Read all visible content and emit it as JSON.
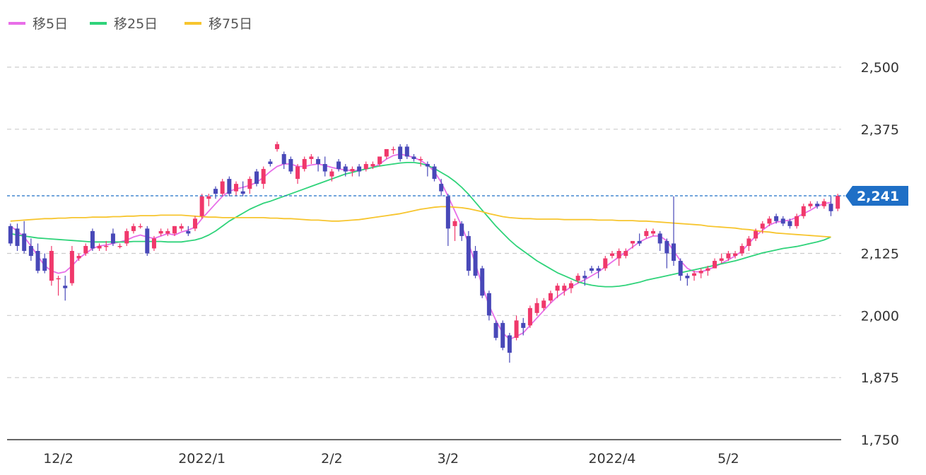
{
  "chart_data": {
    "type": "candlestick",
    "legend": {
      "placement": "top-left",
      "items": [
        {
          "label": "移5日",
          "color": "#e86ee8"
        },
        {
          "label": "移25日",
          "color": "#2fd37a"
        },
        {
          "label": "移75日",
          "color": "#f7c52e"
        }
      ]
    },
    "colors": {
      "up": "#f0386b",
      "down": "#4848b8",
      "axis": "#333333",
      "grid": "#cccccc",
      "last_price": "#1f6fc6"
    },
    "y_axis": {
      "min": 1750,
      "max": 2500,
      "position": "right",
      "ticks": [
        {
          "value": 2500,
          "label": "2,500"
        },
        {
          "value": 2375,
          "label": "2,375"
        },
        {
          "value": 2125,
          "label": "2,125"
        },
        {
          "value": 2000,
          "label": "2,000"
        },
        {
          "value": 1875,
          "label": "1,875"
        },
        {
          "value": 1750,
          "label": "1,750"
        }
      ]
    },
    "x_axis": {
      "ticks": [
        {
          "index": 7,
          "label": "12/2"
        },
        {
          "index": 28,
          "label": "2022/1"
        },
        {
          "index": 47,
          "label": "2/2"
        },
        {
          "index": 64,
          "label": "3/2"
        },
        {
          "index": 88,
          "label": "2022/4"
        },
        {
          "index": 105,
          "label": "5/2"
        }
      ]
    },
    "last_price": {
      "value": 2241,
      "label": "2,241"
    },
    "candles": [
      [
        2180,
        2185,
        2140,
        2145
      ],
      [
        2175,
        2185,
        2130,
        2140
      ],
      [
        2165,
        2190,
        2125,
        2130
      ],
      [
        2140,
        2155,
        2110,
        2120
      ],
      [
        2130,
        2145,
        2085,
        2090
      ],
      [
        2115,
        2125,
        2085,
        2090
      ],
      [
        2070,
        2140,
        2060,
        2130
      ],
      [
        2075,
        2080,
        2040,
        2075
      ],
      [
        2060,
        2080,
        2030,
        2055
      ],
      [
        2065,
        2140,
        2060,
        2130
      ],
      [
        2115,
        2125,
        2110,
        2120
      ],
      [
        2125,
        2145,
        2120,
        2140
      ],
      [
        2170,
        2175,
        2130,
        2135
      ],
      [
        2135,
        2145,
        2130,
        2140
      ],
      [
        2140,
        2150,
        2130,
        2140
      ],
      [
        2165,
        2175,
        2140,
        2145
      ],
      [
        2140,
        2145,
        2135,
        2140
      ],
      [
        2145,
        2175,
        2140,
        2170
      ],
      [
        2170,
        2185,
        2165,
        2180
      ],
      [
        2180,
        2185,
        2175,
        2180
      ],
      [
        2175,
        2180,
        2120,
        2125
      ],
      [
        2135,
        2160,
        2130,
        2155
      ],
      [
        2165,
        2175,
        2160,
        2170
      ],
      [
        2165,
        2175,
        2160,
        2170
      ],
      [
        2165,
        2180,
        2160,
        2180
      ],
      [
        2175,
        2185,
        2170,
        2180
      ],
      [
        2170,
        2180,
        2160,
        2165
      ],
      [
        2175,
        2200,
        2170,
        2195
      ],
      [
        2200,
        2245,
        2195,
        2240
      ],
      [
        2235,
        2245,
        2220,
        2240
      ],
      [
        2255,
        2260,
        2235,
        2245
      ],
      [
        2245,
        2275,
        2240,
        2270
      ],
      [
        2275,
        2280,
        2240,
        2245
      ],
      [
        2250,
        2270,
        2240,
        2265
      ],
      [
        2250,
        2270,
        2240,
        2245
      ],
      [
        2255,
        2280,
        2245,
        2275
      ],
      [
        2290,
        2295,
        2260,
        2265
      ],
      [
        2265,
        2300,
        2255,
        2295
      ],
      [
        2310,
        2315,
        2300,
        2305
      ],
      [
        2335,
        2350,
        2330,
        2345
      ],
      [
        2325,
        2330,
        2295,
        2305
      ],
      [
        2315,
        2320,
        2285,
        2290
      ],
      [
        2275,
        2305,
        2265,
        2300
      ],
      [
        2295,
        2320,
        2290,
        2315
      ],
      [
        2315,
        2325,
        2305,
        2320
      ],
      [
        2315,
        2320,
        2290,
        2305
      ],
      [
        2305,
        2320,
        2280,
        2290
      ],
      [
        2280,
        2295,
        2270,
        2290
      ],
      [
        2310,
        2315,
        2290,
        2295
      ],
      [
        2300,
        2305,
        2280,
        2290
      ],
      [
        2290,
        2300,
        2280,
        2295
      ],
      [
        2300,
        2305,
        2280,
        2290
      ],
      [
        2295,
        2310,
        2290,
        2305
      ],
      [
        2300,
        2310,
        2295,
        2305
      ],
      [
        2305,
        2320,
        2300,
        2320
      ],
      [
        2320,
        2335,
        2315,
        2335
      ],
      [
        2335,
        2340,
        2325,
        2335
      ],
      [
        2340,
        2345,
        2310,
        2315
      ],
      [
        2340,
        2345,
        2315,
        2320
      ],
      [
        2320,
        2325,
        2310,
        2315
      ],
      [
        2315,
        2320,
        2300,
        2315
      ],
      [
        2305,
        2310,
        2280,
        2300
      ],
      [
        2300,
        2305,
        2270,
        2275
      ],
      [
        2265,
        2275,
        2240,
        2250
      ],
      [
        2240,
        2245,
        2140,
        2175
      ],
      [
        2180,
        2195,
        2150,
        2190
      ],
      [
        2185,
        2190,
        2150,
        2160
      ],
      [
        2160,
        2170,
        2080,
        2090
      ],
      [
        2130,
        2140,
        2075,
        2080
      ],
      [
        2095,
        2100,
        2035,
        2040
      ],
      [
        2045,
        2050,
        1990,
        2000
      ],
      [
        1985,
        1990,
        1950,
        1955
      ],
      [
        1985,
        1990,
        1930,
        1935
      ],
      [
        1960,
        1965,
        1905,
        1925
      ],
      [
        1955,
        2000,
        1950,
        1990
      ],
      [
        1985,
        1995,
        1960,
        1975
      ],
      [
        1980,
        2020,
        1975,
        2015
      ],
      [
        2005,
        2035,
        2000,
        2025
      ],
      [
        2015,
        2035,
        2010,
        2030
      ],
      [
        2030,
        2050,
        2025,
        2045
      ],
      [
        2050,
        2065,
        2035,
        2060
      ],
      [
        2050,
        2065,
        2040,
        2060
      ],
      [
        2055,
        2070,
        2045,
        2065
      ],
      [
        2070,
        2085,
        2065,
        2080
      ],
      [
        2080,
        2090,
        2060,
        2075
      ],
      [
        2095,
        2100,
        2085,
        2090
      ],
      [
        2095,
        2100,
        2075,
        2090
      ],
      [
        2095,
        2120,
        2090,
        2115
      ],
      [
        2120,
        2130,
        2115,
        2125
      ],
      [
        2115,
        2135,
        2100,
        2130
      ],
      [
        2120,
        2135,
        2115,
        2130
      ],
      [
        2145,
        2150,
        2135,
        2150
      ],
      [
        2150,
        2165,
        2140,
        2145
      ],
      [
        2160,
        2175,
        2155,
        2170
      ],
      [
        2165,
        2175,
        2160,
        2170
      ],
      [
        2165,
        2170,
        2130,
        2145
      ],
      [
        2150,
        2155,
        2095,
        2125
      ],
      [
        2145,
        2240,
        2100,
        2110
      ],
      [
        2110,
        2115,
        2070,
        2080
      ],
      [
        2080,
        2085,
        2060,
        2075
      ],
      [
        2080,
        2090,
        2070,
        2085
      ],
      [
        2085,
        2095,
        2075,
        2090
      ],
      [
        2090,
        2100,
        2080,
        2095
      ],
      [
        2095,
        2115,
        2095,
        2110
      ],
      [
        2110,
        2125,
        2105,
        2115
      ],
      [
        2115,
        2130,
        2110,
        2125
      ],
      [
        2120,
        2130,
        2115,
        2125
      ],
      [
        2125,
        2145,
        2120,
        2140
      ],
      [
        2140,
        2160,
        2130,
        2155
      ],
      [
        2155,
        2175,
        2150,
        2170
      ],
      [
        2175,
        2190,
        2165,
        2185
      ],
      [
        2185,
        2200,
        2180,
        2195
      ],
      [
        2200,
        2205,
        2185,
        2190
      ],
      [
        2195,
        2200,
        2180,
        2185
      ],
      [
        2190,
        2195,
        2175,
        2180
      ],
      [
        2180,
        2205,
        2175,
        2200
      ],
      [
        2200,
        2225,
        2195,
        2220
      ],
      [
        2220,
        2230,
        2215,
        2225
      ],
      [
        2225,
        2230,
        2215,
        2220
      ],
      [
        2220,
        2235,
        2215,
        2230
      ],
      [
        2225,
        2240,
        2200,
        2210
      ],
      [
        2215,
        2245,
        2210,
        2241
      ]
    ],
    "series": [
      {
        "name": "移5日",
        "color": "#e86ee8",
        "values": [
          2180,
          2170,
          2158,
          2140,
          2120,
          2100,
          2090,
          2085,
          2088,
          2100,
          2115,
          2125,
          2135,
          2140,
          2142,
          2145,
          2148,
          2152,
          2158,
          2162,
          2158,
          2155,
          2160,
          2165,
          2162,
          2168,
          2172,
          2178,
          2195,
          2210,
          2225,
          2240,
          2250,
          2255,
          2258,
          2262,
          2268,
          2278,
          2290,
          2300,
          2305,
          2305,
          2300,
          2300,
          2303,
          2305,
          2302,
          2298,
          2295,
          2293,
          2292,
          2292,
          2295,
          2298,
          2305,
          2315,
          2322,
          2325,
          2322,
          2318,
          2312,
          2303,
          2290,
          2268,
          2240,
          2210,
          2180,
          2145,
          2105,
          2060,
          2020,
          1990,
          1965,
          1952,
          1958,
          1965,
          1980,
          1995,
          2010,
          2025,
          2038,
          2048,
          2058,
          2065,
          2072,
          2080,
          2088,
          2098,
          2108,
          2118,
          2128,
          2138,
          2148,
          2155,
          2160,
          2160,
          2150,
          2130,
          2110,
          2095,
          2088,
          2088,
          2092,
          2098,
          2105,
          2112,
          2120,
          2130,
          2145,
          2160,
          2172,
          2182,
          2188,
          2190,
          2192,
          2198,
          2205,
          2212,
          2220,
          2225,
          2228
        ]
      },
      {
        "name": "移25日",
        "color": "#2fd37a",
        "values": [
          2165,
          2162,
          2160,
          2158,
          2156,
          2155,
          2154,
          2153,
          2152,
          2151,
          2150,
          2149,
          2148,
          2148,
          2148,
          2148,
          2148,
          2148,
          2149,
          2149,
          2149,
          2149,
          2149,
          2148,
          2148,
          2148,
          2150,
          2152,
          2156,
          2162,
          2170,
          2180,
          2190,
          2198,
          2206,
          2214,
          2220,
          2226,
          2230,
          2235,
          2240,
          2245,
          2250,
          2255,
          2260,
          2265,
          2270,
          2275,
          2280,
          2285,
          2288,
          2292,
          2295,
          2298,
          2301,
          2303,
          2305,
          2307,
          2308,
          2308,
          2306,
          2302,
          2296,
          2288,
          2280,
          2270,
          2258,
          2244,
          2228,
          2212,
          2196,
          2180,
          2166,
          2152,
          2140,
          2130,
          2120,
          2110,
          2102,
          2094,
          2086,
          2080,
          2074,
          2068,
          2064,
          2061,
          2059,
          2058,
          2058,
          2059,
          2061,
          2064,
          2067,
          2071,
          2074,
          2077,
          2080,
          2083,
          2086,
          2089,
          2092,
          2095,
          2098,
          2101,
          2104,
          2107,
          2110,
          2114,
          2118,
          2122,
          2126,
          2129,
          2132,
          2135,
          2137,
          2139,
          2142,
          2145,
          2148,
          2152,
          2158
        ]
      },
      {
        "name": "移75日",
        "color": "#f7c52e",
        "values": [
          2190,
          2191,
          2192,
          2193,
          2194,
          2195,
          2195,
          2196,
          2196,
          2197,
          2197,
          2197,
          2198,
          2198,
          2198,
          2199,
          2199,
          2200,
          2200,
          2201,
          2201,
          2201,
          2202,
          2202,
          2202,
          2202,
          2201,
          2200,
          2199,
          2198,
          2198,
          2197,
          2197,
          2197,
          2197,
          2197,
          2197,
          2197,
          2196,
          2196,
          2195,
          2195,
          2194,
          2193,
          2192,
          2192,
          2191,
          2190,
          2190,
          2191,
          2192,
          2193,
          2195,
          2197,
          2199,
          2201,
          2203,
          2205,
          2208,
          2211,
          2214,
          2216,
          2218,
          2219,
          2219,
          2218,
          2217,
          2215,
          2212,
          2209,
          2205,
          2202,
          2199,
          2197,
          2196,
          2195,
          2195,
          2194,
          2194,
          2194,
          2194,
          2193,
          2193,
          2193,
          2193,
          2193,
          2192,
          2192,
          2192,
          2191,
          2191,
          2191,
          2190,
          2190,
          2189,
          2188,
          2187,
          2186,
          2185,
          2184,
          2183,
          2182,
          2180,
          2179,
          2178,
          2177,
          2176,
          2174,
          2173,
          2171,
          2169,
          2168,
          2166,
          2165,
          2164,
          2163,
          2162,
          2161,
          2160,
          2159,
          2158
        ]
      }
    ]
  }
}
